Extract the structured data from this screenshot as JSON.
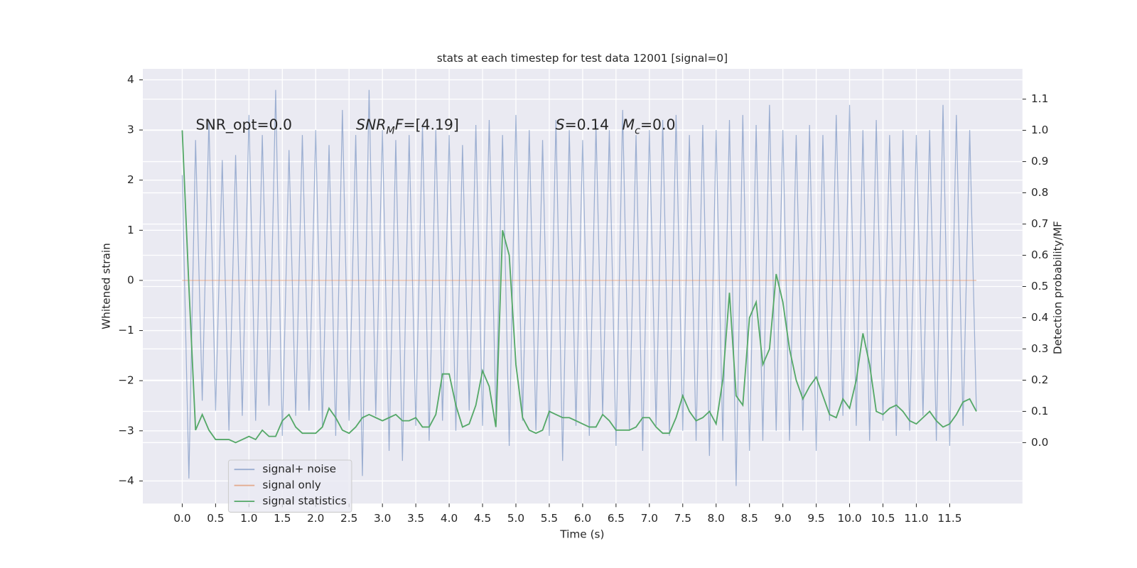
{
  "chart_data": {
    "type": "line",
    "title": "stats at each timestep for test data 12001 [signal=0]",
    "xlabel": "Time (s)",
    "ylabel": "Whitened strain",
    "y2label": "Detection probability/MF",
    "annotations": [
      [
        {
          "text": "SNR_opt=0.0"
        }
      ],
      [
        {
          "text": "SNR",
          "italic": true
        },
        {
          "text": "M",
          "italic": true,
          "sub": true
        },
        {
          "text": "F",
          "italic": true
        },
        {
          "text": "=[4.19]"
        }
      ],
      [
        {
          "text": "S",
          "italic": true
        },
        {
          "text": "=0.14"
        }
      ],
      [
        {
          "text": "M",
          "italic": true
        },
        {
          "text": "c",
          "italic": true,
          "sub": true
        },
        {
          "text": "=0.0"
        }
      ]
    ],
    "x": [
      0.0,
      0.1,
      0.2,
      0.3,
      0.4,
      0.5,
      0.6,
      0.7,
      0.8,
      0.9,
      1.0,
      1.1,
      1.2,
      1.3,
      1.4,
      1.5,
      1.6,
      1.7,
      1.8,
      1.9,
      2.0,
      2.1,
      2.2,
      2.3,
      2.4,
      2.5,
      2.6,
      2.7,
      2.8,
      2.9,
      3.0,
      3.1,
      3.2,
      3.3,
      3.4,
      3.5,
      3.6,
      3.7,
      3.8,
      3.9,
      4.0,
      4.1,
      4.2,
      4.3,
      4.4,
      4.5,
      4.6,
      4.7,
      4.8,
      4.9,
      5.0,
      5.1,
      5.2,
      5.3,
      5.4,
      5.5,
      5.6,
      5.7,
      5.8,
      5.9,
      6.0,
      6.1,
      6.2,
      6.3,
      6.4,
      6.5,
      6.6,
      6.7,
      6.8,
      6.9,
      7.0,
      7.1,
      7.2,
      7.3,
      7.4,
      7.5,
      7.6,
      7.7,
      7.8,
      7.9,
      8.0,
      8.1,
      8.2,
      8.3,
      8.4,
      8.5,
      8.6,
      8.7,
      8.8,
      8.9,
      9.0,
      9.1,
      9.2,
      9.3,
      9.4,
      9.5,
      9.6,
      9.7,
      9.8,
      9.9,
      10.0,
      10.1,
      10.2,
      10.3,
      10.4,
      10.5,
      10.6,
      10.7,
      10.8,
      10.9,
      11.0,
      11.1,
      11.2,
      11.3,
      11.4,
      11.5,
      11.6,
      11.7,
      11.8,
      11.9
    ],
    "series": [
      {
        "name": "signal+ noise",
        "color": "#4c72b0",
        "opacity": 0.5,
        "axis": "y",
        "values": [
          2.1,
          -3.95,
          2.8,
          -2.4,
          3.2,
          -2.6,
          2.4,
          -3.0,
          2.5,
          -2.7,
          3.3,
          -2.8,
          2.9,
          -2.5,
          3.8,
          -3.1,
          2.6,
          -2.7,
          2.9,
          -2.6,
          3.0,
          -2.9,
          2.7,
          -3.1,
          3.4,
          -2.8,
          2.9,
          -3.9,
          3.8,
          -2.7,
          3.0,
          -3.4,
          2.8,
          -3.6,
          2.9,
          -2.9,
          3.1,
          -3.2,
          3.0,
          -2.8,
          2.9,
          -3.0,
          2.7,
          -2.6,
          3.1,
          -2.9,
          3.2,
          -2.7,
          2.9,
          -3.3,
          3.3,
          -2.8,
          3.0,
          -3.0,
          2.8,
          -3.1,
          3.2,
          -3.6,
          3.0,
          -2.9,
          2.8,
          -3.1,
          3.1,
          -2.7,
          3.0,
          -3.3,
          3.4,
          -3.0,
          2.9,
          -3.4,
          3.0,
          -2.9,
          3.2,
          -3.1,
          3.3,
          -3.0,
          2.9,
          -3.2,
          3.1,
          -3.5,
          3.0,
          -3.2,
          3.2,
          -4.1,
          3.3,
          -3.4,
          3.1,
          -3.2,
          3.5,
          -3.0,
          3.0,
          -3.2,
          2.9,
          -3.0,
          3.1,
          -3.4,
          2.9,
          -2.8,
          3.3,
          -2.7,
          3.5,
          -2.9,
          3.0,
          -3.2,
          3.2,
          -2.8,
          2.9,
          -3.1,
          3.0,
          -3.0,
          2.9,
          -2.7,
          3.0,
          -3.2,
          3.5,
          -3.3,
          3.3,
          -2.9,
          3.0,
          -2.6
        ]
      },
      {
        "name": "signal only",
        "color": "#dd8452",
        "opacity": 0.6,
        "axis": "y",
        "values": [
          0,
          0,
          0,
          0,
          0,
          0,
          0,
          0,
          0,
          0,
          0,
          0,
          0,
          0,
          0,
          0,
          0,
          0,
          0,
          0,
          0,
          0,
          0,
          0,
          0,
          0,
          0,
          0,
          0,
          0,
          0,
          0,
          0,
          0,
          0,
          0,
          0,
          0,
          0,
          0,
          0,
          0,
          0,
          0,
          0,
          0,
          0,
          0,
          0,
          0,
          0,
          0,
          0,
          0,
          0,
          0,
          0,
          0,
          0,
          0,
          0,
          0,
          0,
          0,
          0,
          0,
          0,
          0,
          0,
          0,
          0,
          0,
          0,
          0,
          0,
          0,
          0,
          0,
          0,
          0,
          0,
          0,
          0,
          0,
          0,
          0,
          0,
          0,
          0,
          0,
          0,
          0,
          0,
          0,
          0,
          0,
          0,
          0,
          0,
          0,
          0,
          0,
          0,
          0,
          0,
          0,
          0,
          0,
          0,
          0,
          0,
          0,
          0,
          0,
          0,
          0,
          0,
          0,
          0,
          0
        ]
      },
      {
        "name": "signal statistics",
        "color": "#55a868",
        "opacity": 1,
        "axis": "y2",
        "values": [
          1.0,
          0.5,
          0.04,
          0.09,
          0.04,
          0.01,
          0.01,
          0.01,
          0.0,
          0.01,
          0.02,
          0.01,
          0.04,
          0.02,
          0.02,
          0.07,
          0.09,
          0.05,
          0.03,
          0.03,
          0.03,
          0.05,
          0.11,
          0.08,
          0.04,
          0.03,
          0.05,
          0.08,
          0.09,
          0.08,
          0.07,
          0.08,
          0.09,
          0.07,
          0.07,
          0.08,
          0.05,
          0.05,
          0.09,
          0.22,
          0.22,
          0.12,
          0.05,
          0.06,
          0.12,
          0.23,
          0.18,
          0.05,
          0.68,
          0.6,
          0.25,
          0.08,
          0.04,
          0.03,
          0.04,
          0.1,
          0.09,
          0.08,
          0.08,
          0.07,
          0.06,
          0.05,
          0.05,
          0.09,
          0.07,
          0.04,
          0.04,
          0.04,
          0.05,
          0.08,
          0.08,
          0.05,
          0.03,
          0.03,
          0.08,
          0.15,
          0.1,
          0.07,
          0.08,
          0.1,
          0.06,
          0.2,
          0.48,
          0.15,
          0.12,
          0.4,
          0.45,
          0.25,
          0.3,
          0.54,
          0.45,
          0.3,
          0.2,
          0.14,
          0.18,
          0.21,
          0.15,
          0.09,
          0.08,
          0.14,
          0.11,
          0.2,
          0.35,
          0.25,
          0.1,
          0.09,
          0.11,
          0.12,
          0.1,
          0.07,
          0.06,
          0.08,
          0.1,
          0.07,
          0.05,
          0.06,
          0.09,
          0.13,
          0.14,
          0.1
        ]
      }
    ],
    "xlim": [
      -0.59,
      12.59
    ],
    "ylim": [
      -4.45,
      4.22
    ],
    "y2lim": [
      -0.195,
      1.197
    ],
    "xticks": [
      {
        "value": 0,
        "label": "0.0"
      },
      0.5,
      {
        "value": 1,
        "label": "1.0"
      },
      1.5,
      {
        "value": 2,
        "label": "2.0"
      },
      2.5,
      {
        "value": 3,
        "label": "3.0"
      },
      3.5,
      {
        "value": 4,
        "label": "4.0"
      },
      4.5,
      {
        "value": 5,
        "label": "5.0"
      },
      5.5,
      {
        "value": 6,
        "label": "6.0"
      },
      6.5,
      {
        "value": 7,
        "label": "7.0"
      },
      7.5,
      {
        "value": 8,
        "label": "8.0"
      },
      8.5,
      {
        "value": 9,
        "label": "9.0"
      },
      9.5,
      {
        "value": 10,
        "label": "10.0"
      },
      10.5,
      {
        "value": 11,
        "label": "11.0"
      },
      11.5
    ],
    "yticks": [
      {
        "value": -4,
        "label": "−4"
      },
      {
        "value": -3,
        "label": "−3"
      },
      {
        "value": -2,
        "label": "−2"
      },
      {
        "value": -1,
        "label": "−1"
      },
      0,
      1,
      2,
      3,
      4
    ],
    "y2ticks": [
      {
        "value": 0,
        "label": "0.0"
      },
      0.1,
      0.2,
      0.3,
      0.4,
      0.5,
      0.6,
      0.7,
      0.8,
      0.9,
      {
        "value": 1,
        "label": "1.0"
      },
      1.1
    ],
    "grid": true,
    "legend": "lower left"
  }
}
